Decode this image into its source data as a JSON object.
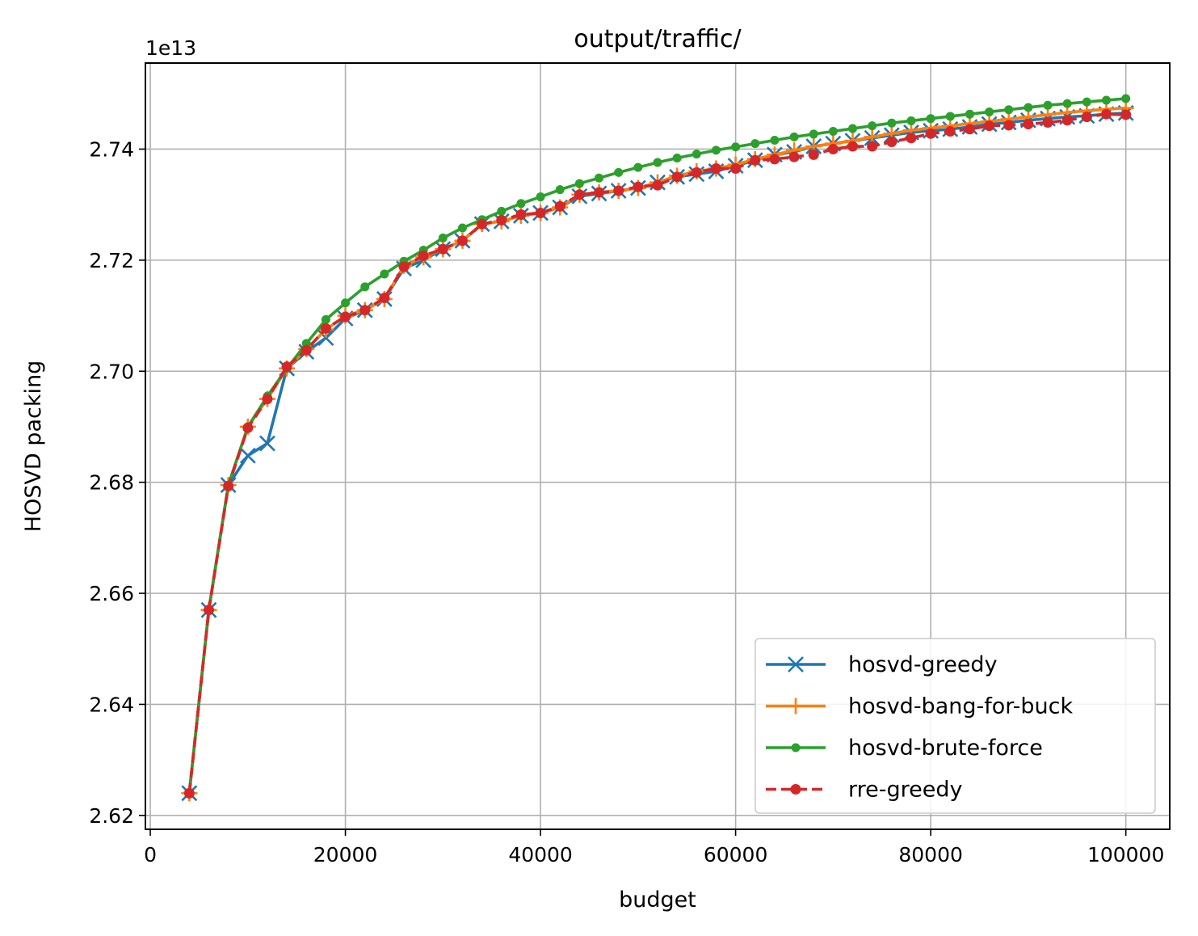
{
  "chart_data": {
    "type": "line",
    "title": "output/traffic/",
    "xlabel": "budget",
    "ylabel": "HOSVD packing",
    "y_offset_label": "1e13",
    "xlim": [
      -500,
      104500
    ],
    "ylim": [
      2.6175,
      2.7555
    ],
    "xticks": [
      0,
      20000,
      40000,
      60000,
      80000,
      100000
    ],
    "xtick_labels": [
      "0",
      "20000",
      "40000",
      "60000",
      "80000",
      "100000"
    ],
    "yticks": [
      2.62,
      2.64,
      2.66,
      2.68,
      2.7,
      2.72,
      2.74
    ],
    "ytick_labels": [
      "2.62",
      "2.64",
      "2.66",
      "2.68",
      "2.70",
      "2.72",
      "2.74"
    ],
    "grid": true,
    "legend_position": "lower-right",
    "x": [
      4000,
      6000,
      8000,
      10000,
      12000,
      14000,
      16000,
      18000,
      20000,
      22000,
      24000,
      26000,
      28000,
      30000,
      32000,
      34000,
      36000,
      38000,
      40000,
      42000,
      44000,
      46000,
      48000,
      50000,
      52000,
      54000,
      56000,
      58000,
      60000,
      62000,
      64000,
      66000,
      68000,
      70000,
      72000,
      74000,
      76000,
      78000,
      80000,
      82000,
      84000,
      86000,
      88000,
      90000,
      92000,
      94000,
      96000,
      98000,
      100000
    ],
    "series": [
      {
        "name": "hosvd-greedy",
        "color": "#1f77b4",
        "marker": "x",
        "linestyle": "solid",
        "values": [
          2.624,
          2.657,
          2.6795,
          2.6848,
          2.687,
          2.7005,
          2.7035,
          2.706,
          2.7095,
          2.711,
          2.713,
          2.7185,
          2.72,
          2.722,
          2.7235,
          2.7265,
          2.727,
          2.728,
          2.7285,
          2.7295,
          2.7315,
          2.732,
          2.7325,
          2.733,
          2.734,
          2.735,
          2.7355,
          2.736,
          2.737,
          2.738,
          2.739,
          2.7395,
          2.7405,
          2.741,
          2.7415,
          2.742,
          2.7425,
          2.743,
          2.7433,
          2.7436,
          2.744,
          2.7445,
          2.7448,
          2.7452,
          2.7455,
          2.7458,
          2.746,
          2.7463,
          2.7465
        ]
      },
      {
        "name": "hosvd-bang-for-buck",
        "color": "#ff7f0e",
        "marker": "+",
        "linestyle": "solid",
        "values": [
          2.624,
          2.657,
          2.6795,
          2.69,
          2.695,
          2.7005,
          2.704,
          2.7075,
          2.71,
          2.711,
          2.713,
          2.719,
          2.7205,
          2.722,
          2.7235,
          2.7265,
          2.727,
          2.728,
          2.7285,
          2.7295,
          2.7318,
          2.7322,
          2.7325,
          2.733,
          2.734,
          2.7352,
          2.736,
          2.7365,
          2.7372,
          2.7382,
          2.739,
          2.7398,
          2.7405,
          2.741,
          2.7415,
          2.7422,
          2.7428,
          2.7434,
          2.7438,
          2.7442,
          2.7446,
          2.745,
          2.7454,
          2.7458,
          2.7462,
          2.7466,
          2.7469,
          2.7472,
          2.7474
        ]
      },
      {
        "name": "hosvd-brute-force",
        "color": "#2ca02c",
        "marker": "o-small",
        "linestyle": "solid",
        "values": [
          2.624,
          2.657,
          2.6795,
          2.69,
          2.6955,
          2.7005,
          2.705,
          2.7093,
          2.7123,
          2.7152,
          2.7175,
          2.7198,
          2.7218,
          2.724,
          2.7258,
          2.7273,
          2.7288,
          2.7302,
          2.7314,
          2.7327,
          2.7338,
          2.7348,
          2.7358,
          2.7367,
          2.7376,
          2.7384,
          2.7391,
          2.7398,
          2.7404,
          2.741,
          2.7416,
          2.7422,
          2.7427,
          2.7432,
          2.7437,
          2.7442,
          2.7447,
          2.7451,
          2.7455,
          2.7459,
          2.7463,
          2.7467,
          2.7471,
          2.7475,
          2.7479,
          2.7482,
          2.7485,
          2.7488,
          2.7491
        ]
      },
      {
        "name": "rre-greedy",
        "color": "#d62728",
        "marker": "o",
        "linestyle": "dashed",
        "values": [
          2.624,
          2.657,
          2.6793,
          2.6898,
          2.695,
          2.7008,
          2.7038,
          2.7077,
          2.7098,
          2.711,
          2.7132,
          2.7188,
          2.7208,
          2.722,
          2.7235,
          2.7265,
          2.7272,
          2.7282,
          2.7285,
          2.7297,
          2.7318,
          2.7322,
          2.7325,
          2.7332,
          2.7335,
          2.735,
          2.7358,
          2.7365,
          2.7365,
          2.738,
          2.7382,
          2.7386,
          2.739,
          2.74,
          2.7405,
          2.7405,
          2.7413,
          2.742,
          2.7428,
          2.7432,
          2.7436,
          2.7442,
          2.7443,
          2.7445,
          2.7448,
          2.7452,
          2.7458,
          2.7463,
          2.7462
        ]
      }
    ]
  }
}
